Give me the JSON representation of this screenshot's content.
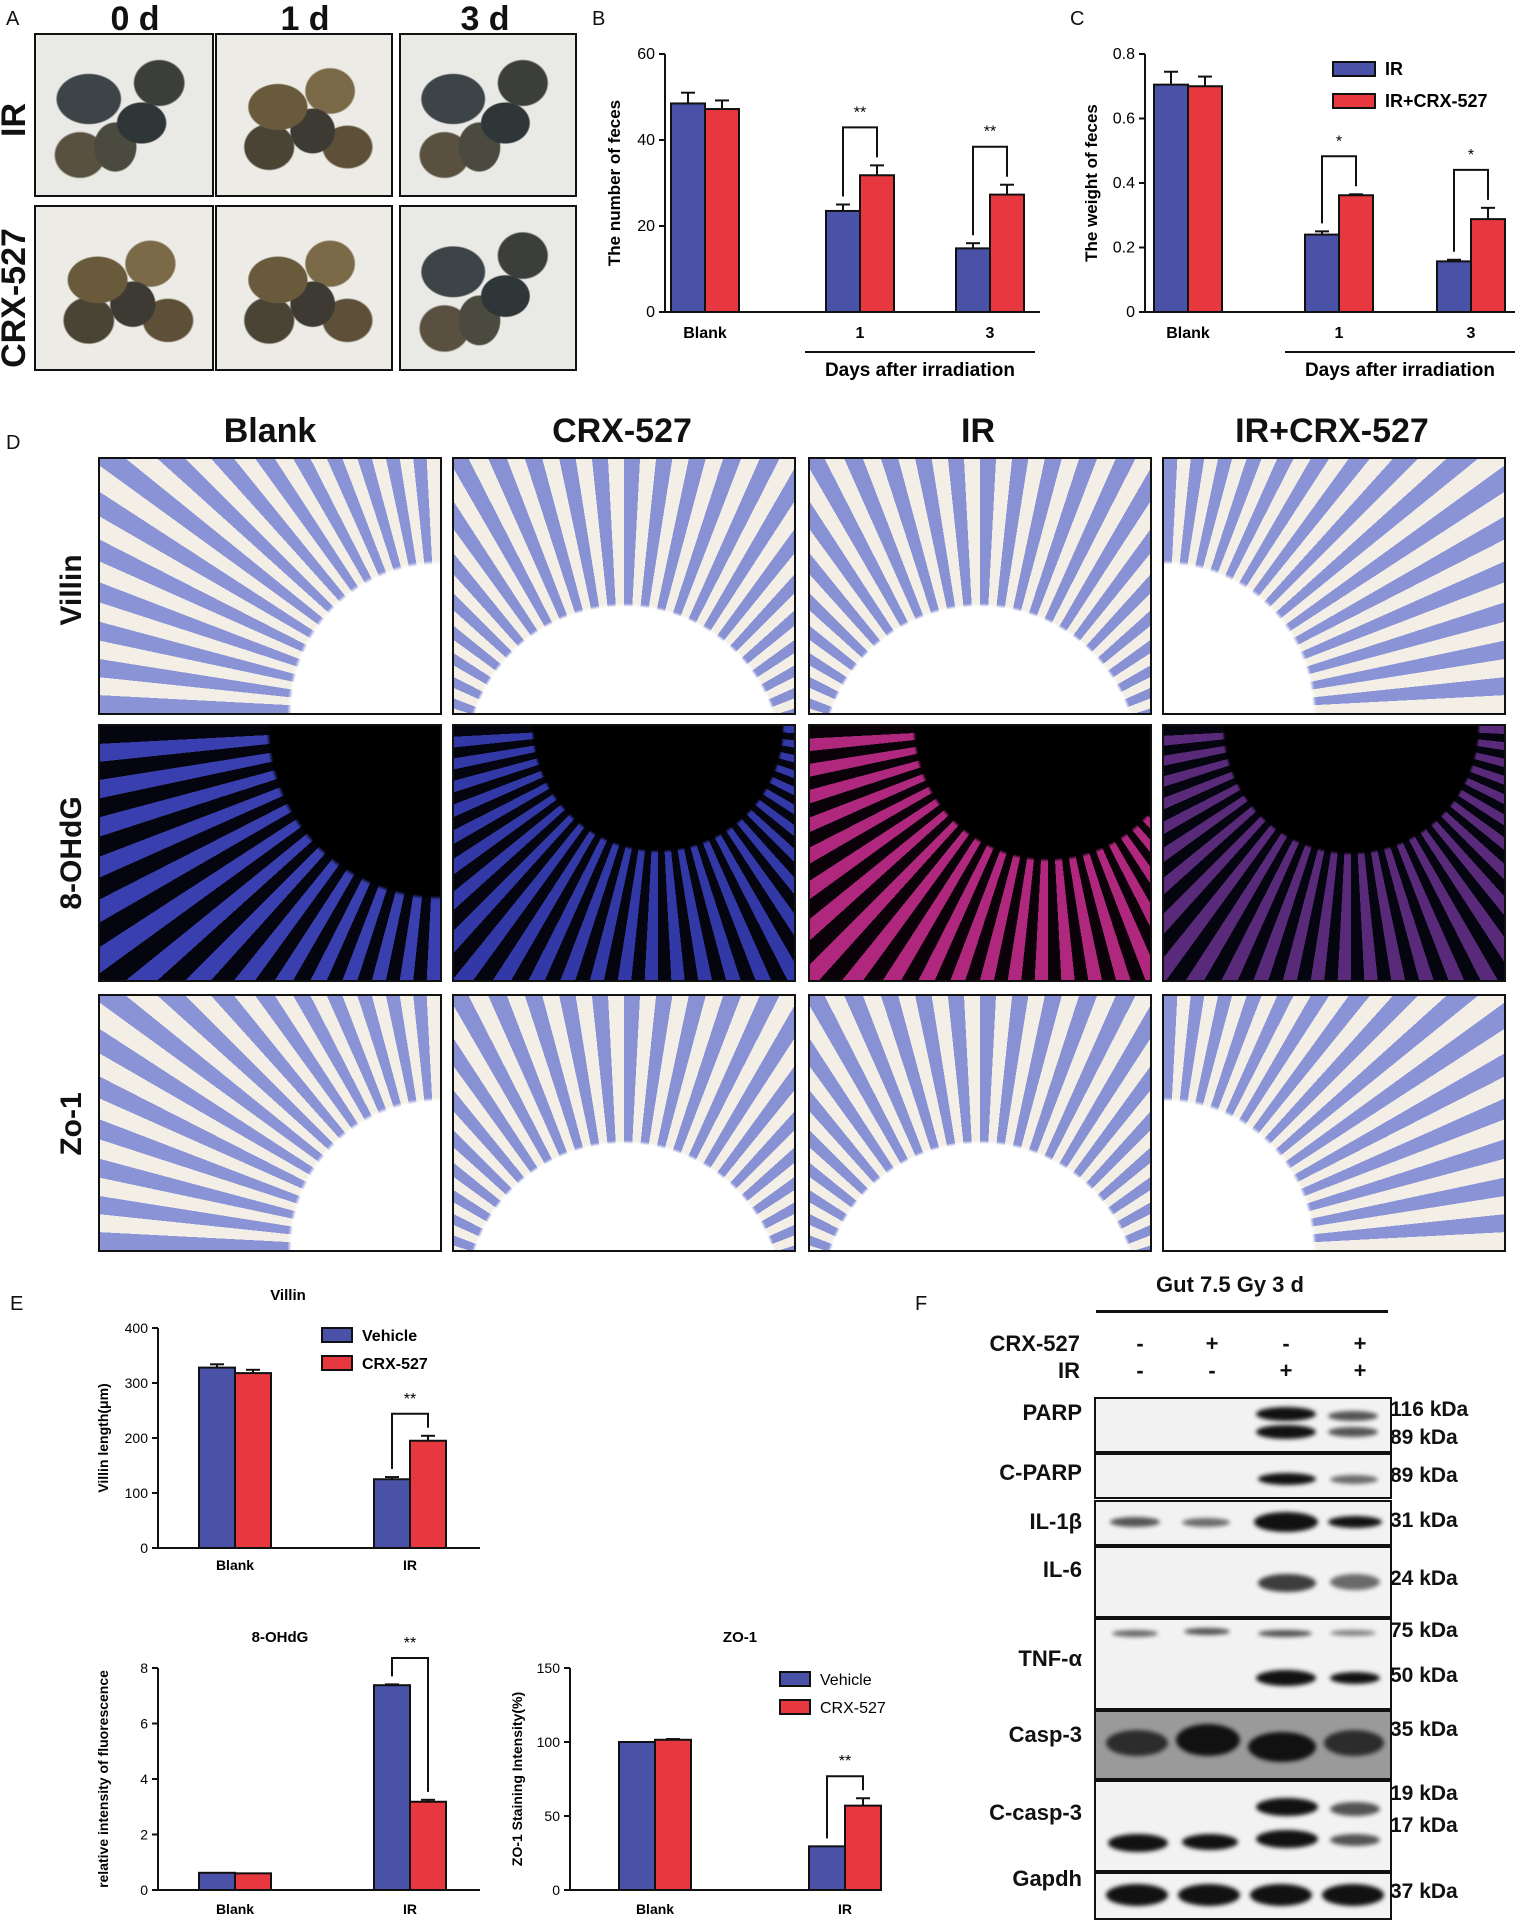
{
  "panels": {
    "A": "A",
    "B": "B",
    "C": "C",
    "D": "D",
    "E": "E",
    "F": "F"
  },
  "panelA": {
    "col_headers": [
      "0 d",
      "1 d",
      "3 d"
    ],
    "row_labels": [
      "IR",
      "CRX-527"
    ]
  },
  "panelD": {
    "col_headers": [
      "Blank",
      "CRX-527",
      "IR",
      "IR+CRX-527"
    ],
    "row_labels": [
      "Villin",
      "8-OHdG",
      "Zo-1"
    ]
  },
  "panelF": {
    "title": "Gut 7.5 Gy 3 d",
    "treatments": [
      {
        "label": "CRX-527",
        "values": [
          "-",
          "+",
          "-",
          "+"
        ]
      },
      {
        "label": "IR",
        "values": [
          "-",
          "-",
          "+",
          "+"
        ]
      }
    ],
    "proteins": [
      {
        "name": "PARP",
        "markers": [
          "116 kDa",
          "89 kDa"
        ]
      },
      {
        "name": "C-PARP",
        "markers": [
          "89 kDa"
        ]
      },
      {
        "name": "IL-1β",
        "markers": [
          "31 kDa"
        ]
      },
      {
        "name": "IL-6",
        "markers": [
          "24 kDa"
        ]
      },
      {
        "name": "TNF-α",
        "markers": [
          "75 kDa",
          "50 kDa"
        ]
      },
      {
        "name": "Casp-3",
        "markers": [
          "35 kDa"
        ]
      },
      {
        "name": "C-casp-3",
        "markers": [
          "19 kDa",
          "17 kDa"
        ]
      },
      {
        "name": "Gapdh",
        "markers": [
          "37 kDa"
        ]
      }
    ]
  },
  "colors": {
    "ir": "#4a52a8",
    "crx": "#e8383f"
  },
  "chart_data": [
    {
      "id": "B",
      "type": "bar",
      "categories": [
        "Blank",
        "1",
        "3"
      ],
      "group_label": "Days after irradiation",
      "ylabel": "The number of feces",
      "ylim": [
        0,
        60
      ],
      "yticks": [
        0,
        20,
        40,
        60
      ],
      "series": [
        {
          "name": "IR",
          "values": [
            48.5,
            23.5,
            14.8
          ],
          "errors": [
            2.5,
            1.5,
            1.2
          ]
        },
        {
          "name": "IR+CRX-527",
          "values": [
            47.2,
            31.8,
            27.3
          ],
          "errors": [
            2,
            2.3,
            2.3
          ]
        }
      ],
      "annotations": [
        {
          "pair": 1,
          "text": "**"
        },
        {
          "pair": 2,
          "text": "**"
        }
      ]
    },
    {
      "id": "C",
      "type": "bar",
      "categories": [
        "Blank",
        "1",
        "3"
      ],
      "group_label": "Days after irradiation",
      "ylabel": "The weight of feces",
      "ylim": [
        0,
        0.8
      ],
      "yticks": [
        0.0,
        0.2,
        0.4,
        0.6,
        0.8
      ],
      "legend": [
        "IR",
        "IR+CRX-527"
      ],
      "series": [
        {
          "name": "IR",
          "values": [
            0.705,
            0.24,
            0.157
          ],
          "errors": [
            0.04,
            0.01,
            0.005
          ]
        },
        {
          "name": "IR+CRX-527",
          "values": [
            0.7,
            0.362,
            0.288
          ],
          "errors": [
            0.03,
            0.003,
            0.035
          ]
        }
      ],
      "annotations": [
        {
          "pair": 1,
          "text": "*"
        },
        {
          "pair": 2,
          "text": "*"
        }
      ]
    },
    {
      "id": "E1",
      "type": "bar",
      "title": "Villin",
      "categories": [
        "Blank",
        "IR"
      ],
      "ylabel": "Villin length(μm)",
      "ylim": [
        0,
        400
      ],
      "yticks": [
        0,
        100,
        200,
        300,
        400
      ],
      "legend": [
        "Vehicle",
        "CRX-527"
      ],
      "series": [
        {
          "name": "Vehicle",
          "values": [
            328,
            125
          ],
          "errors": [
            6,
            4
          ]
        },
        {
          "name": "CRX-527",
          "values": [
            318,
            195
          ],
          "errors": [
            6,
            9
          ]
        }
      ],
      "annotations": [
        {
          "pair": 1,
          "text": "**"
        }
      ]
    },
    {
      "id": "E2",
      "type": "bar",
      "title": "8-OHdG",
      "categories": [
        "Blank",
        "IR"
      ],
      "ylabel": "relative intensity of fluorescence",
      "ylim": [
        0,
        8
      ],
      "yticks": [
        0,
        2,
        4,
        6,
        8
      ],
      "series": [
        {
          "name": "Vehicle",
          "values": [
            0.62,
            7.38
          ],
          "errors": [
            0,
            0.03
          ]
        },
        {
          "name": "CRX-527",
          "values": [
            0.6,
            3.18
          ],
          "errors": [
            0,
            0.07
          ]
        }
      ],
      "annotations": [
        {
          "pair": 1,
          "text": "**"
        }
      ]
    },
    {
      "id": "E3",
      "type": "bar",
      "title": "ZO-1",
      "categories": [
        "Blank",
        "IR"
      ],
      "ylabel": "ZO-1 Staining Intensity(%)",
      "ylim": [
        0,
        150
      ],
      "yticks": [
        0,
        50,
        100,
        150
      ],
      "legend": [
        "Vehicle",
        "CRX-527"
      ],
      "series": [
        {
          "name": "Vehicle",
          "values": [
            100,
            29.5
          ],
          "errors": [
            0,
            0
          ]
        },
        {
          "name": "CRX-527",
          "values": [
            101.5,
            57
          ],
          "errors": [
            0.5,
            5
          ]
        }
      ],
      "annotations": [
        {
          "pair": 1,
          "text": "**"
        }
      ]
    }
  ]
}
